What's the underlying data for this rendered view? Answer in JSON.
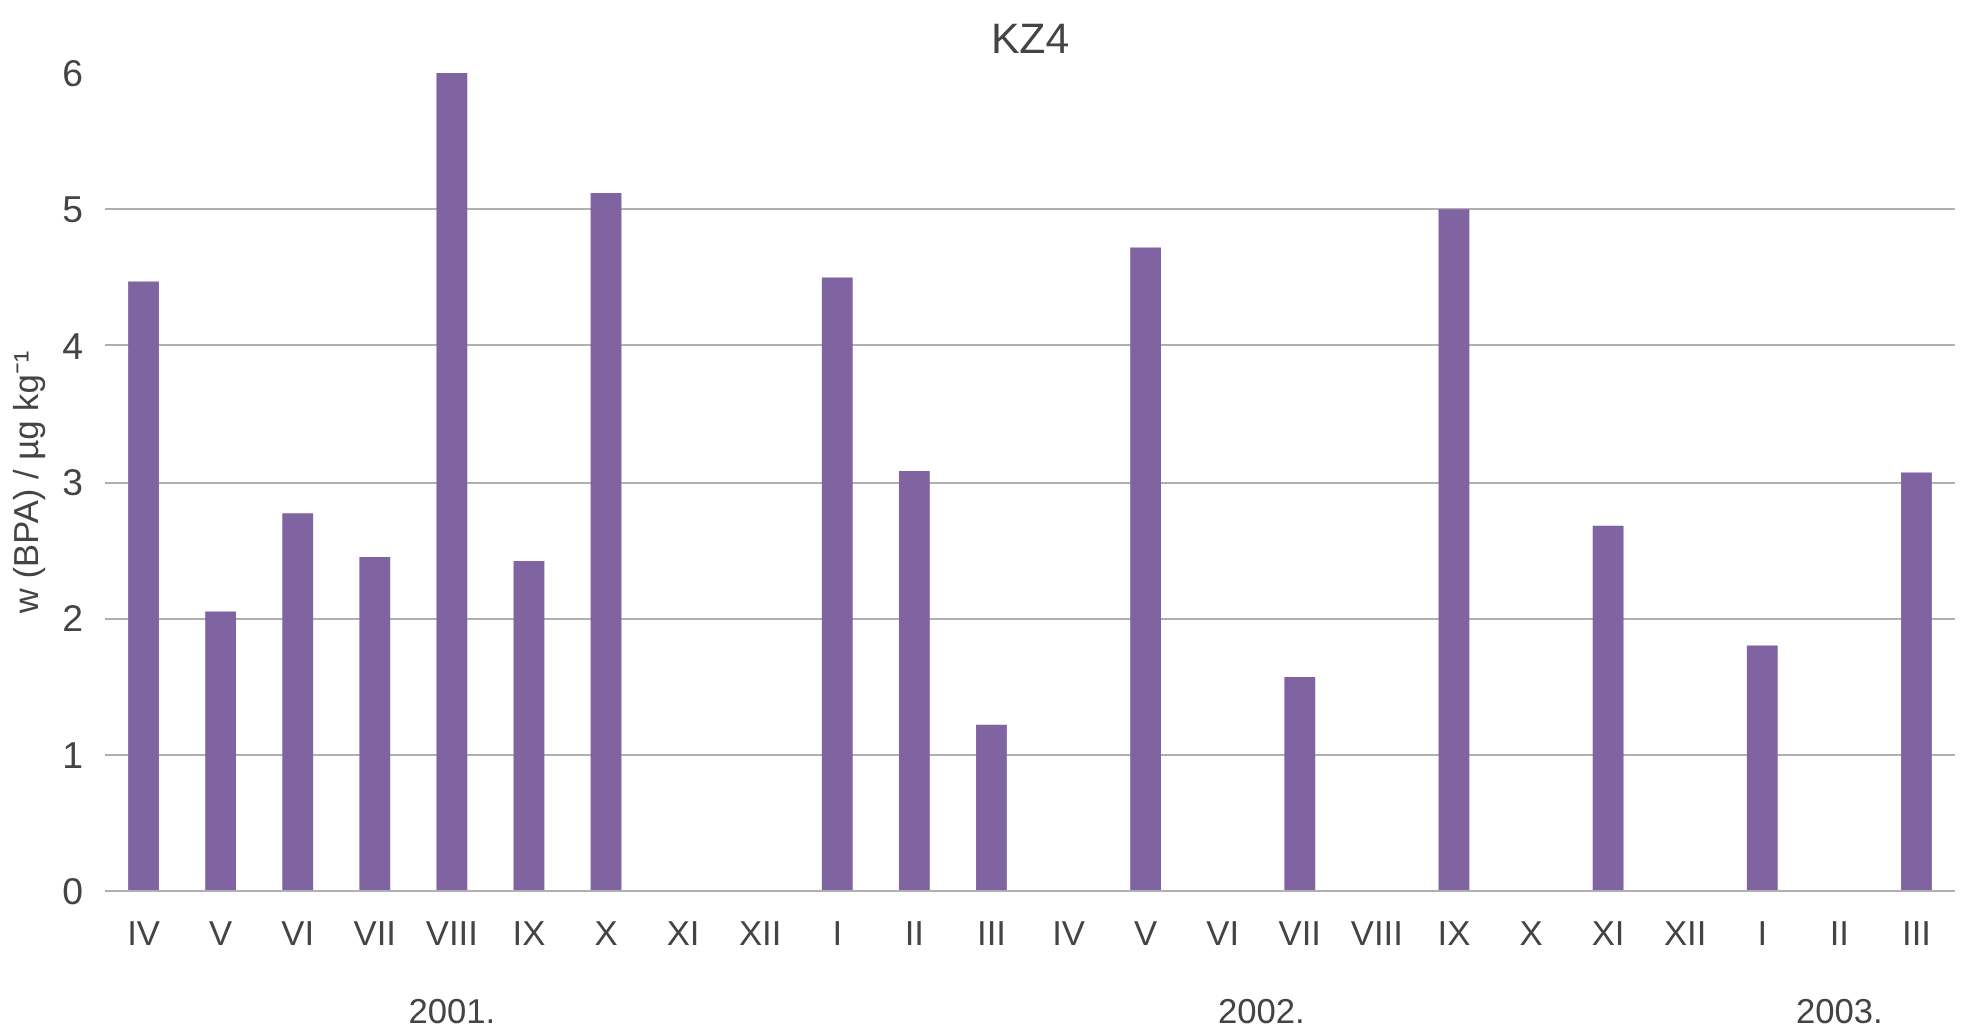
{
  "chart_data": {
    "type": "bar",
    "title": "KZ4",
    "ylabel": "w (BPA) / µg kg⁻¹",
    "categories": [
      "IV",
      "V",
      "VI",
      "VII",
      "VIII",
      "IX",
      "X",
      "XI",
      "XII",
      "I",
      "II",
      "III",
      "IV",
      "V",
      "VI",
      "VII",
      "VIII",
      "IX",
      "X",
      "XI",
      "XII",
      "I",
      "II",
      "III"
    ],
    "values": [
      4.47,
      2.05,
      2.77,
      2.45,
      6.0,
      2.42,
      5.12,
      null,
      null,
      4.5,
      3.08,
      1.22,
      null,
      4.72,
      null,
      1.57,
      null,
      5.0,
      null,
      2.68,
      null,
      1.8,
      null,
      3.07
    ],
    "color": "#8064a2",
    "ylim": [
      0,
      6
    ],
    "yticks": [
      0,
      1,
      2,
      3,
      4,
      5,
      6
    ],
    "grid": "y",
    "annotations": [
      "2001.",
      "2002.",
      "2003."
    ]
  }
}
